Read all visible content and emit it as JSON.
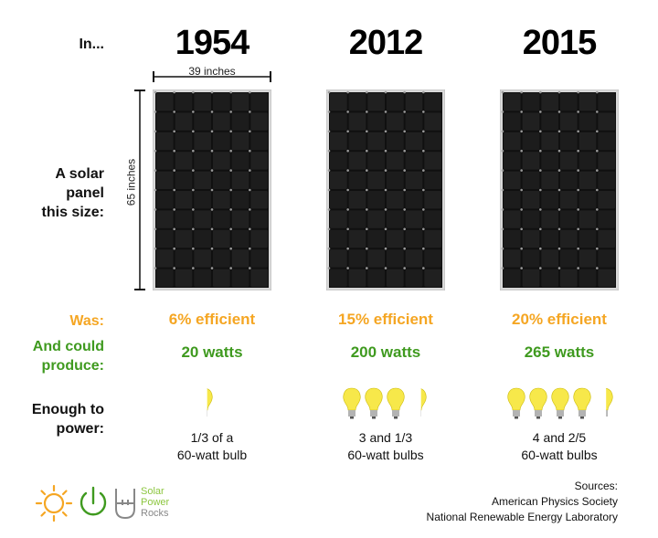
{
  "row_labels": {
    "in": "In...",
    "panel": "A solar\npanel\nthis size:",
    "was": "Was:",
    "produce": "And could\nproduce:",
    "power": "Enough to\npower:"
  },
  "dimensions": {
    "width": "39 inches",
    "height": "65 inches"
  },
  "columns": [
    {
      "year": "1954",
      "efficiency": "6% efficient",
      "watts": "20 watts",
      "bulbs_count": 0.333,
      "bulbs_text": "1/3 of a\n60-watt bulb"
    },
    {
      "year": "2012",
      "efficiency": "15% efficient",
      "watts": "200 watts",
      "bulbs_count": 3.333,
      "bulbs_text": "3 and 1/3\n60-watt bulbs"
    },
    {
      "year": "2015",
      "efficiency": "20% efficient",
      "watts": "265 watts",
      "bulbs_count": 4.4,
      "bulbs_text": "4 and 2/5\n60-watt bulbs"
    }
  ],
  "sources": {
    "title": "Sources:",
    "lines": [
      "American Physics Society",
      "National Renewable Energy Laboratory"
    ]
  },
  "logo": {
    "line1": "Solar",
    "line2": "Power",
    "line3": "Rocks"
  },
  "colors": {
    "efficiency": "#f5a623",
    "watts": "#3f9a1f",
    "bulb": "#f7e84a",
    "logo_orange": "#f5a623",
    "logo_green": "#3f9a1f"
  }
}
